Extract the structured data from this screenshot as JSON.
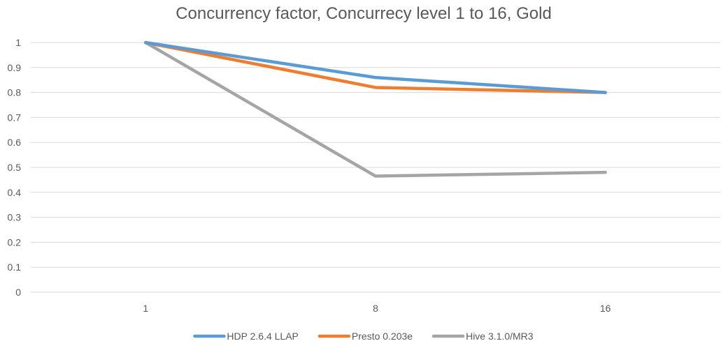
{
  "chart_data": {
    "type": "line",
    "title": "Concurrency factor, Concurrecy level 1 to 16, Gold",
    "xlabel": "",
    "ylabel": "",
    "categories": [
      "1",
      "8",
      "16"
    ],
    "ylim": [
      0,
      1
    ],
    "yticks": [
      "0",
      "0.1",
      "0.2",
      "0.3",
      "0.4",
      "0.5",
      "0.6",
      "0.7",
      "0.8",
      "0.9",
      "1"
    ],
    "grid": true,
    "legend_position": "bottom",
    "series": [
      {
        "name": "HDP 2.6.4 LLAP",
        "color": "#5b9bd5",
        "values": [
          1.0,
          0.86,
          0.8
        ]
      },
      {
        "name": "Presto 0.203e",
        "color": "#ed7d31",
        "values": [
          1.0,
          0.82,
          0.8
        ]
      },
      {
        "name": "Hive 3.1.0/MR3",
        "color": "#a5a5a5",
        "values": [
          1.0,
          0.465,
          0.48
        ]
      }
    ]
  }
}
